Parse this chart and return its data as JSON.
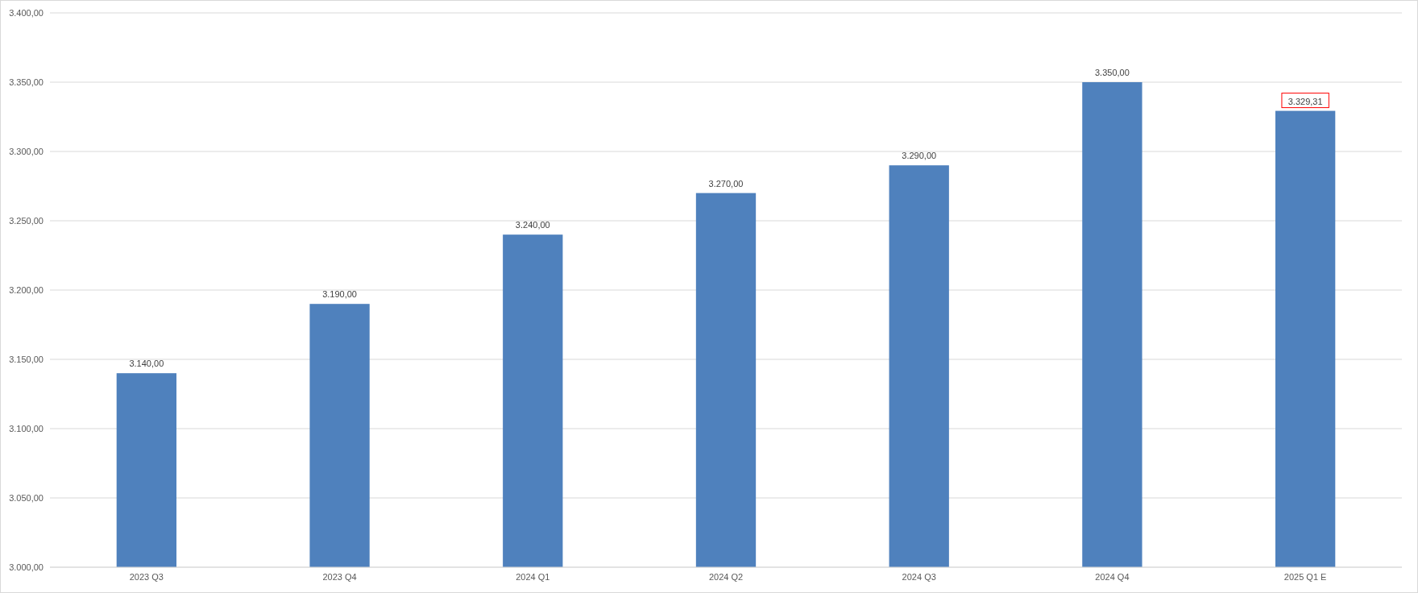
{
  "chart_data": {
    "type": "bar",
    "categories": [
      "2023 Q3",
      "2023 Q4",
      "2024 Q1",
      "2024 Q2",
      "2024 Q3",
      "2024 Q4",
      "2025 Q1 E"
    ],
    "values": [
      3140,
      3190,
      3240,
      3270,
      3290,
      3350,
      3329.31
    ],
    "value_labels": [
      "3.140,00",
      "3.190,00",
      "3.240,00",
      "3.270,00",
      "3.290,00",
      "3.350,00",
      null
    ],
    "annotations": [
      {
        "text": "3.329,31",
        "x": "2025 Q1 E",
        "y": 3329.31
      }
    ],
    "color": "#4f81bd",
    "ylim": [
      3000,
      3400
    ],
    "yticks": [
      {
        "value": 3000,
        "label": "3.000,00"
      },
      {
        "value": 3050,
        "label": "3.050,00"
      },
      {
        "value": 3100,
        "label": "3.100,00"
      },
      {
        "value": 3150,
        "label": "3.150,00"
      },
      {
        "value": 3200,
        "label": "3.200,00"
      },
      {
        "value": 3250,
        "label": "3.250,00"
      },
      {
        "value": 3300,
        "label": "3.300,00"
      },
      {
        "value": 3350,
        "label": "3.350,00"
      },
      {
        "value": 3400,
        "label": "3.400,00"
      }
    ],
    "grid": "y"
  }
}
